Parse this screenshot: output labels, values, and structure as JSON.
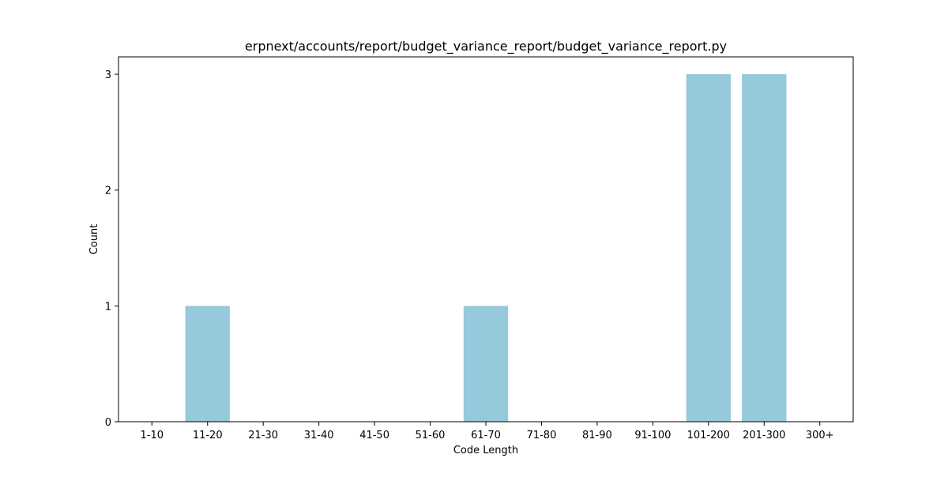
{
  "chart_data": {
    "type": "bar",
    "title": "erpnext/accounts/report/budget_variance_report/budget_variance_report.py",
    "xlabel": "Code Length",
    "ylabel": "Count",
    "categories": [
      "1-10",
      "11-20",
      "21-30",
      "31-40",
      "41-50",
      "51-60",
      "61-70",
      "71-80",
      "81-90",
      "91-100",
      "101-200",
      "201-300",
      "300+"
    ],
    "values": [
      0,
      1,
      0,
      0,
      0,
      0,
      1,
      0,
      0,
      0,
      3,
      3,
      0
    ],
    "ylim": [
      0,
      3.15
    ],
    "yticks": [
      0,
      1,
      2,
      3
    ],
    "bar_color": "#96c9dc",
    "grid": false,
    "legend": "none"
  }
}
